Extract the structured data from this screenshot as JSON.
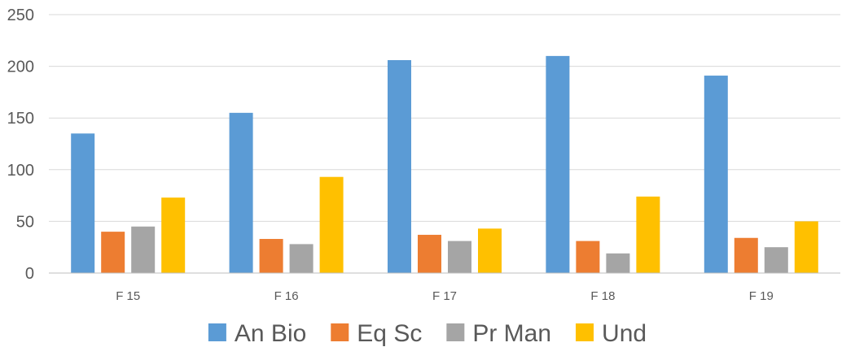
{
  "chart_data": {
    "type": "bar",
    "categories": [
      "F 15",
      "F 16",
      "F 17",
      "F 18",
      "F 19"
    ],
    "series": [
      {
        "name": "An Bio",
        "color": "#5b9bd5",
        "values": [
          135,
          155,
          206,
          210,
          191
        ]
      },
      {
        "name": "Eq Sc",
        "color": "#ed7d31",
        "values": [
          40,
          33,
          37,
          31,
          34
        ]
      },
      {
        "name": "Pr Man",
        "color": "#a5a5a5",
        "values": [
          45,
          28,
          31,
          19,
          25
        ]
      },
      {
        "name": "Und",
        "color": "#ffc000",
        "values": [
          73,
          93,
          43,
          74,
          50
        ]
      }
    ],
    "ylim": [
      0,
      250
    ],
    "yticks": [
      "0",
      "50",
      "100",
      "150",
      "200",
      "250"
    ],
    "grid": true,
    "legend": "bottom"
  }
}
